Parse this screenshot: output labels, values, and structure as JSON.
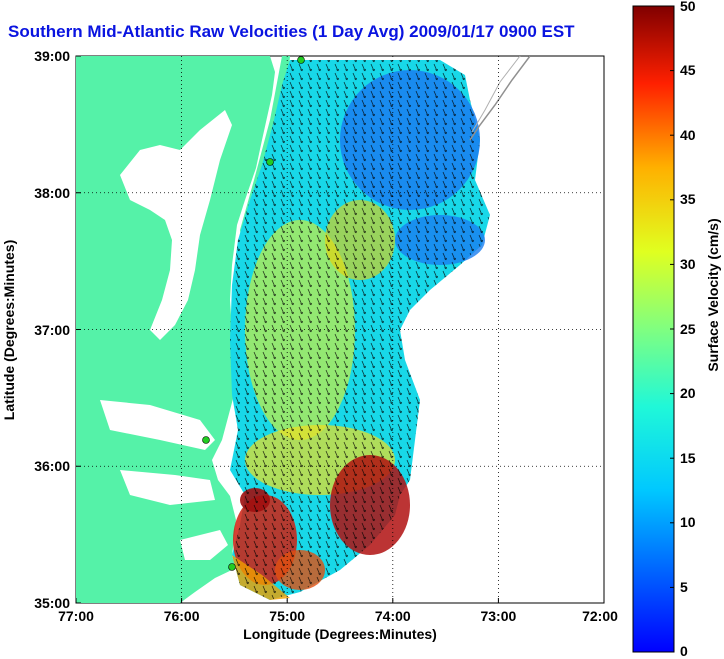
{
  "title": "Southern Mid-Atlantic Raw Velocities (1 Day Avg) 2009/01/17 0900 EST",
  "axes": {
    "xlabel": "Longitude (Degrees:Minutes)",
    "ylabel": "Latitude (Degrees:Minutes)",
    "xticks": [
      "77:00",
      "76:00",
      "75:00",
      "74:00",
      "73:00",
      "72:00"
    ],
    "yticks": [
      "39:00",
      "38:00",
      "37:00",
      "36:00",
      "35:00"
    ],
    "xlim": [
      -77,
      -72
    ],
    "ylim": [
      35,
      39
    ]
  },
  "colorbar": {
    "label": "Surface Velocity (cm/s)",
    "ticks": [
      "0",
      "5",
      "10",
      "15",
      "20",
      "25",
      "30",
      "35",
      "40",
      "45",
      "50"
    ],
    "range": [
      0,
      50
    ],
    "colormap": "jet"
  },
  "colors": {
    "title": "#0a14e0",
    "land": "#55f2a8",
    "station": "#22cc22"
  },
  "grid": "dotted",
  "stations": [
    "station-north",
    "station-mid-north",
    "station-mid",
    "station-south"
  ]
}
